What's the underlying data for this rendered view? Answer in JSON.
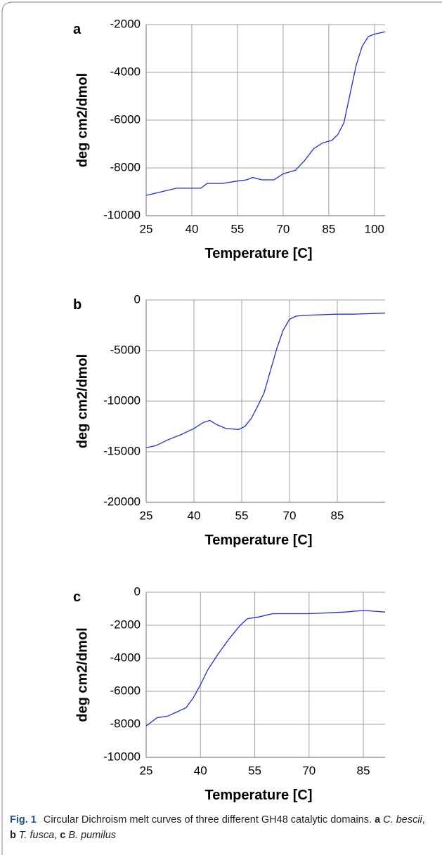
{
  "chart_data": [
    {
      "type": "line",
      "panel": "a",
      "xlabel": "Temperature [C]",
      "ylabel": "deg cm2/dmol",
      "x": [
        25,
        30,
        35,
        40,
        43,
        45,
        50,
        55,
        58,
        60,
        63,
        67,
        70,
        74,
        77,
        80,
        83,
        86,
        88,
        90,
        92,
        94,
        96,
        98,
        100,
        103.5
      ],
      "series": [
        {
          "color": "#1f2fd6",
          "values": [
            -9150,
            -9000,
            -8850,
            -8850,
            -8850,
            -8650,
            -8650,
            -8550,
            -8500,
            -8400,
            -8500,
            -8500,
            -8250,
            -8100,
            -7700,
            -7200,
            -6950,
            -6850,
            -6600,
            -6100,
            -4900,
            -3700,
            -2900,
            -2500,
            -2400,
            -2300
          ]
        }
      ],
      "xlim": [
        25,
        103.5
      ],
      "ylim": [
        -10000,
        -2000
      ],
      "xticks": [
        25,
        40,
        55,
        70,
        85,
        100
      ],
      "yticks": [
        -10000,
        -8000,
        -6000,
        -4000,
        -2000
      ],
      "grid": true
    },
    {
      "type": "line",
      "panel": "b",
      "xlabel": "Temperature [C]",
      "ylabel": "deg cm2/dmol",
      "x": [
        25,
        28,
        32,
        36,
        40,
        43,
        45,
        47,
        50,
        54,
        56,
        58,
        60,
        62,
        64,
        66,
        68,
        70,
        72,
        76,
        85,
        90,
        100
      ],
      "series": [
        {
          "color": "#1f2fd6",
          "values": [
            -14600,
            -14400,
            -13800,
            -13300,
            -12700,
            -12100,
            -11900,
            -12300,
            -12700,
            -12800,
            -12500,
            -11700,
            -10500,
            -9200,
            -7000,
            -4800,
            -3000,
            -1900,
            -1600,
            -1500,
            -1400,
            -1400,
            -1300
          ]
        }
      ],
      "xlim": [
        25,
        100
      ],
      "ylim": [
        -20000,
        0
      ],
      "xticks": [
        25,
        40,
        55,
        70,
        85
      ],
      "yticks": [
        -20000,
        -15000,
        -10000,
        -5000,
        0
      ],
      "grid": true
    },
    {
      "type": "line",
      "panel": "c",
      "xlabel": "Temperature [C]",
      "ylabel": "deg cm2/dmol",
      "x": [
        25,
        28,
        31,
        33,
        36,
        38,
        40,
        42,
        45,
        48,
        51,
        53,
        56,
        60,
        70,
        80,
        85,
        91
      ],
      "series": [
        {
          "color": "#1f2fd6",
          "values": [
            -8100,
            -7600,
            -7500,
            -7300,
            -7000,
            -6400,
            -5600,
            -4700,
            -3700,
            -2800,
            -2000,
            -1600,
            -1500,
            -1300,
            -1300,
            -1200,
            -1100,
            -1200
          ]
        }
      ],
      "xlim": [
        25,
        91
      ],
      "ylim": [
        -10000,
        0
      ],
      "xticks": [
        25,
        40,
        55,
        70,
        85
      ],
      "yticks": [
        -10000,
        -8000,
        -6000,
        -4000,
        -2000,
        0
      ],
      "grid": true
    }
  ],
  "caption": {
    "label": "Fig. 1",
    "text": "Circular Dichroism melt curves of three different GH48 catalytic domains.",
    "parts": [
      {
        "letter": "a",
        "name": "C. bescii"
      },
      {
        "letter": "b",
        "name": "T. fusca"
      },
      {
        "letter": "c",
        "name": "B. pumilus"
      }
    ]
  }
}
